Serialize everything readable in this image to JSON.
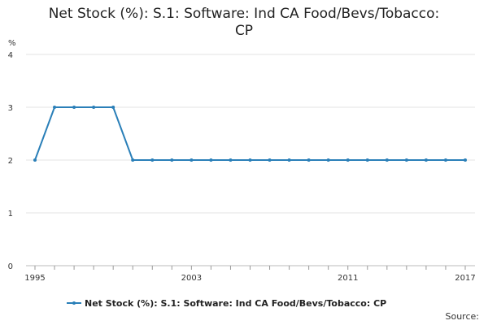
{
  "chart_data": {
    "type": "line",
    "title_line1": "Net Stock (%): S.1: Software: Ind CA Food/Bevs/Tobacco:",
    "title_line2": "CP",
    "y_unit": "%",
    "ylim": [
      0,
      4
    ],
    "y_ticks": [
      "0",
      "1",
      "2",
      "3",
      "4"
    ],
    "x_ticks": [
      "1995",
      "2003",
      "2011",
      "2017"
    ],
    "grid": "horizontal",
    "legend_position": "bottom",
    "series": [
      {
        "name": "Net Stock (%): S.1: Software: Ind CA Food/Bevs/Tobacco: CP",
        "color": "#2a7fb8",
        "x": [
          1995,
          1996,
          1997,
          1998,
          1999,
          2000,
          2001,
          2002,
          2003,
          2004,
          2005,
          2006,
          2007,
          2008,
          2009,
          2010,
          2011,
          2012,
          2013,
          2014,
          2015,
          2016,
          2017
        ],
        "values": [
          2,
          3,
          3,
          3,
          3,
          2,
          2,
          2,
          2,
          2,
          2,
          2,
          2,
          2,
          2,
          2,
          2,
          2,
          2,
          2,
          2,
          2,
          2
        ]
      }
    ],
    "source_label": "Source:"
  }
}
